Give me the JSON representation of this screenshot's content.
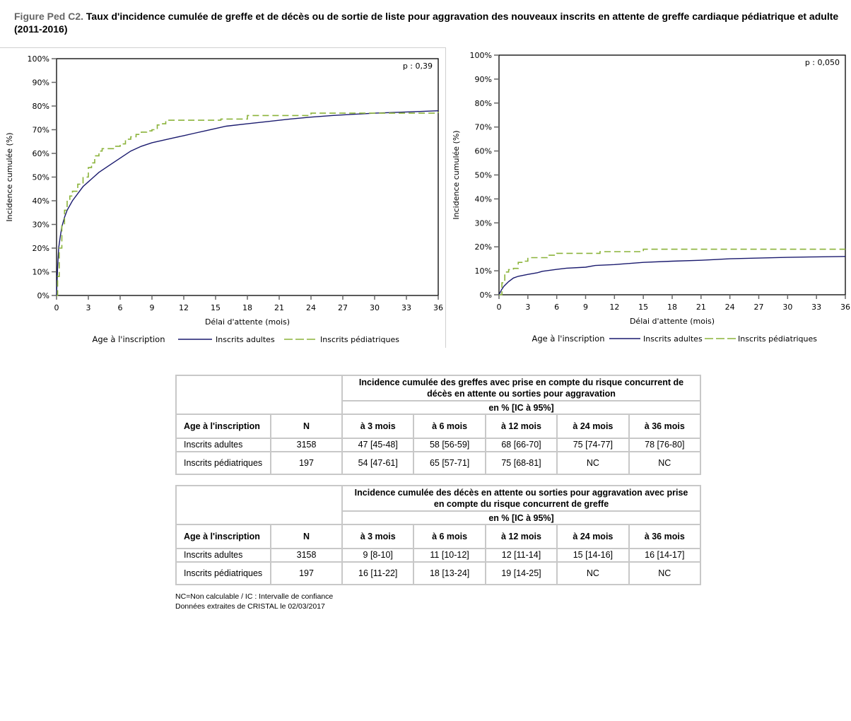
{
  "title": {
    "figure_label": "Figure Ped C2.",
    "text": "Taux d'incidence cumulée de greffe et de décès ou de sortie de liste pour aggravation des nouveaux inscrits en attente de greffe cardiaque pédiatrique et adulte (2011-2016)"
  },
  "colors": {
    "adultes": "#1a1a6e",
    "pediatriques": "#8bb33a"
  },
  "chart_data": [
    {
      "type": "line",
      "xlabel": "Délai d'attente (mois)",
      "ylabel": "Incidence cumulée (%)",
      "xlim": [
        0,
        36
      ],
      "ylim": [
        0,
        100
      ],
      "xticks": [
        "0",
        "3",
        "6",
        "9",
        "12",
        "15",
        "18",
        "21",
        "24",
        "27",
        "30",
        "33",
        "36"
      ],
      "yticks": [
        "0%",
        "10%",
        "20%",
        "30%",
        "40%",
        "50%",
        "60%",
        "70%",
        "80%",
        "90%",
        "100%"
      ],
      "annotation": "p : 0,39",
      "legend_title": "Age à l'inscription",
      "legend_position": "bottom",
      "series": [
        {
          "name": "Inscrits adultes",
          "style": "solid",
          "x": [
            0,
            0.1,
            0.2,
            0.35,
            0.5,
            0.75,
            1,
            1.5,
            2,
            2.5,
            3,
            3.5,
            4,
            5,
            6,
            7,
            8,
            9,
            10,
            11,
            12,
            13,
            14,
            15,
            16,
            18,
            20,
            22,
            24,
            26,
            28,
            30,
            33,
            36
          ],
          "y": [
            0,
            12,
            20,
            25,
            29,
            33,
            36,
            40,
            43,
            46,
            48,
            50,
            52,
            55,
            58,
            61,
            63,
            64.5,
            65.5,
            66.5,
            67.5,
            68.5,
            69.5,
            70.5,
            71.5,
            72.5,
            73.5,
            74.5,
            75.3,
            76,
            76.5,
            77,
            77.5,
            78
          ]
        },
        {
          "name": "Inscrits pédiatriques",
          "style": "dashed",
          "x": [
            0,
            0.1,
            0.25,
            0.5,
            0.75,
            1,
            1.25,
            1.5,
            2,
            2.5,
            3,
            3.3,
            3.6,
            4,
            4.3,
            5,
            5.5,
            6,
            6.5,
            7,
            7.5,
            8,
            8.5,
            9,
            9.5,
            10,
            10.3,
            15,
            15.5,
            18,
            24,
            36
          ],
          "y": [
            0,
            8,
            20,
            30,
            36,
            40,
            42,
            44,
            47,
            50,
            54,
            56,
            59,
            61,
            62,
            62,
            63,
            64,
            66,
            67,
            68,
            69,
            69.5,
            70,
            72,
            72.5,
            74,
            74,
            74.5,
            76,
            77,
            77.5
          ]
        }
      ]
    },
    {
      "type": "line",
      "xlabel": "Délai d'attente (mois)",
      "ylabel": "Incidence cumulée (%)",
      "xlim": [
        0,
        36
      ],
      "ylim": [
        0,
        100
      ],
      "xticks": [
        "0",
        "3",
        "6",
        "9",
        "12",
        "15",
        "18",
        "21",
        "24",
        "27",
        "30",
        "33",
        "36"
      ],
      "yticks": [
        "0%",
        "10%",
        "20%",
        "30%",
        "40%",
        "50%",
        "60%",
        "70%",
        "80%",
        "90%",
        "100%"
      ],
      "annotation": "p : 0,050",
      "legend_title": "Age à l'inscription",
      "legend_position": "bottom",
      "series": [
        {
          "name": "Inscrits adultes",
          "style": "solid",
          "x": [
            0,
            0.25,
            0.5,
            1,
            1.5,
            2,
            3,
            4,
            4.5,
            6,
            7,
            9,
            10,
            12,
            15,
            18,
            21,
            24,
            27,
            30,
            33,
            36
          ],
          "y": [
            0,
            2,
            3.5,
            5.5,
            7,
            7.7,
            8.5,
            9.2,
            9.8,
            10.6,
            11.1,
            11.5,
            12.2,
            12.6,
            13.5,
            14,
            14.4,
            15,
            15.3,
            15.6,
            15.8,
            16
          ]
        },
        {
          "name": "Inscrits pédiatriques",
          "style": "dashed",
          "x": [
            0,
            0.3,
            0.6,
            1,
            1.5,
            2,
            2.5,
            3,
            4.5,
            5,
            6,
            10.5,
            15,
            36
          ],
          "y": [
            0,
            5,
            9.5,
            10.5,
            11,
            13.5,
            14,
            15.5,
            15.5,
            16.5,
            17.3,
            18,
            19,
            19
          ]
        }
      ]
    }
  ],
  "tables": [
    {
      "header_main": "Incidence cumulée des greffes avec prise en compte du risque concurrent de décès en attente ou sorties pour aggravation",
      "header_sub": "en % [IC à 95%]",
      "columns": [
        "Age à l'inscription",
        "N",
        "à 3 mois",
        "à 6 mois",
        "à 12 mois",
        "à 24 mois",
        "à 36 mois"
      ],
      "rows": [
        [
          "Inscrits adultes",
          "3158",
          "47 [45-48]",
          "58 [56-59]",
          "68 [66-70]",
          "75 [74-77]",
          "78 [76-80]"
        ],
        [
          "Inscrits pédiatriques",
          "197",
          "54 [47-61]",
          "65 [57-71]",
          "75 [68-81]",
          "NC",
          "NC"
        ]
      ]
    },
    {
      "header_main": "Incidence cumulée des décès en attente ou sorties pour aggravation avec prise en compte du risque concurrent de greffe",
      "header_sub": "en % [IC à 95%]",
      "columns": [
        "Age à l'inscription",
        "N",
        "à 3 mois",
        "à 6 mois",
        "à 12 mois",
        "à 24 mois",
        "à 36 mois"
      ],
      "rows": [
        [
          "Inscrits adultes",
          "3158",
          "9 [8-10]",
          "11 [10-12]",
          "12 [11-14]",
          "15 [14-16]",
          "16 [14-17]"
        ],
        [
          "Inscrits pédiatriques",
          "197",
          "16 [11-22]",
          "18 [13-24]",
          "19 [14-25]",
          "NC",
          "NC"
        ]
      ]
    }
  ],
  "notes": [
    "NC=Non calculable / IC : Intervalle de confiance",
    "Données extraites de CRISTAL le 02/03/2017"
  ]
}
